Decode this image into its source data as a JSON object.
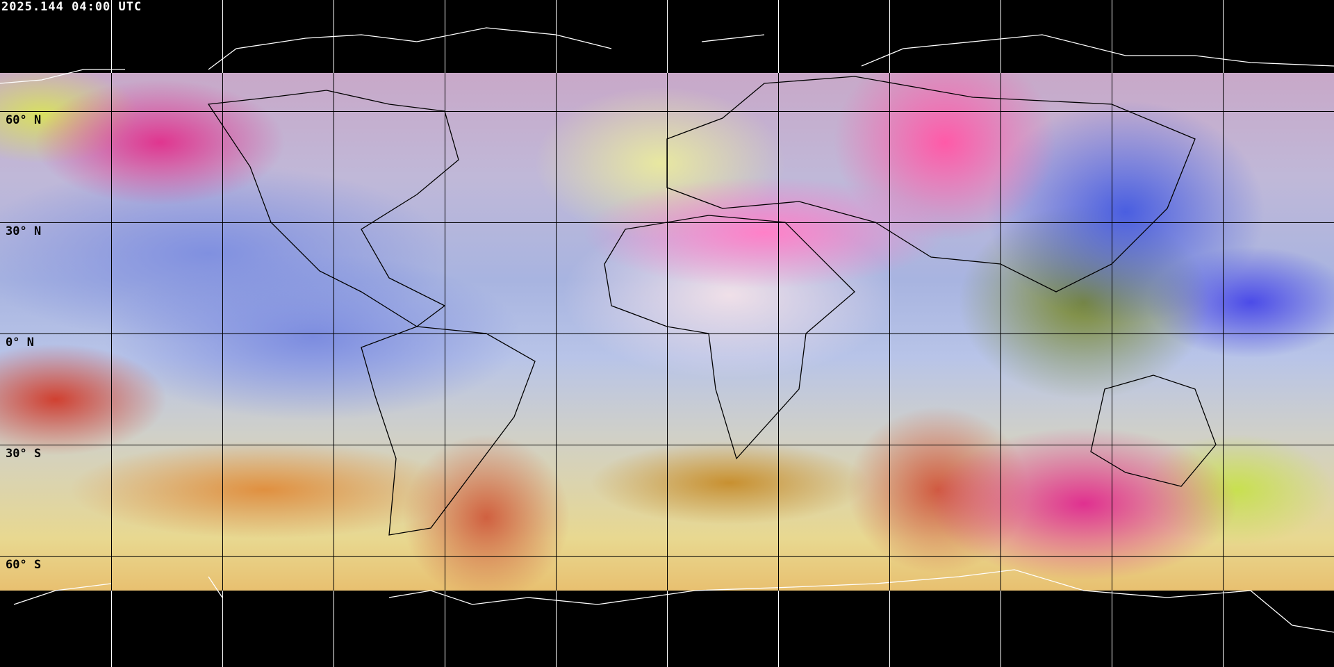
{
  "title": "2025.144 04:00 UTC",
  "latitude_labels": [
    "60° N",
    "30° N",
    "0° N",
    "30° S",
    "60° S"
  ],
  "projection": "equirectangular",
  "graticule_spacing_degrees": 30,
  "colors": {
    "background": "#000000",
    "grid": "#000000",
    "polar_grid": "#ffffff",
    "coastline_polar": "#ffffff",
    "coastline": "#000000"
  }
}
